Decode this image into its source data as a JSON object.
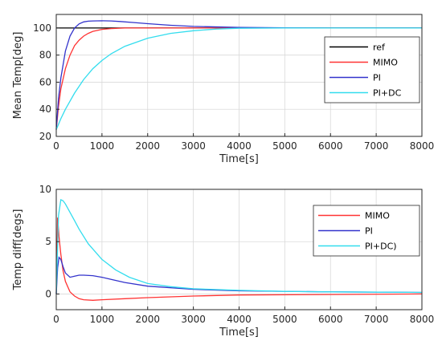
{
  "chart_data": [
    {
      "type": "line",
      "xlabel": "Time[s]",
      "ylabel": "Mean Temp[deg]",
      "xlim": [
        0,
        8000
      ],
      "ylim": [
        20,
        110
      ],
      "xticks": [
        0,
        1000,
        2000,
        3000,
        4000,
        5000,
        6000,
        7000,
        8000
      ],
      "yticks": [
        20,
        40,
        60,
        80,
        100
      ],
      "grid": true,
      "legend": "right-center",
      "series": [
        {
          "name": "ref",
          "color": "#000000",
          "x": [
            0,
            8000
          ],
          "y": [
            100,
            100
          ]
        },
        {
          "name": "MIMO",
          "color": "#ff3333",
          "x": [
            0,
            50,
            100,
            200,
            300,
            400,
            500,
            600,
            700,
            800,
            1000,
            1200,
            1500,
            2000,
            3000,
            8000
          ],
          "y": [
            25,
            42,
            55,
            70,
            80,
            87,
            91,
            94,
            96,
            97.5,
            99,
            99.6,
            100,
            100,
            100,
            100
          ]
        },
        {
          "name": "PI",
          "color": "#3333cc",
          "x": [
            0,
            50,
            100,
            200,
            300,
            400,
            500,
            600,
            700,
            800,
            1000,
            1200,
            1400,
            1700,
            2000,
            2500,
            3000,
            4000,
            5000,
            6000,
            8000
          ],
          "y": [
            25,
            48,
            63,
            83,
            94,
            100,
            103,
            104.5,
            105,
            105.2,
            105.3,
            105.2,
            104.8,
            104,
            103.2,
            102,
            101.2,
            100.4,
            100.1,
            100,
            100
          ]
        },
        {
          "name": "PI+DC",
          "color": "#33ddee",
          "x": [
            0,
            100,
            200,
            400,
            600,
            800,
            1000,
            1200,
            1500,
            2000,
            2500,
            3000,
            3500,
            4000,
            5000,
            6000,
            8000
          ],
          "y": [
            25,
            33,
            40,
            52,
            62,
            70,
            76,
            81,
            86.5,
            92.5,
            96,
            98,
            99.2,
            99.8,
            100,
            100,
            100
          ]
        }
      ]
    },
    {
      "type": "line",
      "xlabel": "Time[s]",
      "ylabel": "Temp diff[degs]",
      "xlim": [
        0,
        8000
      ],
      "ylim": [
        -1.5,
        10
      ],
      "xticks": [
        0,
        1000,
        2000,
        3000,
        4000,
        5000,
        6000,
        7000,
        8000
      ],
      "yticks": [
        0,
        5,
        10
      ],
      "grid": true,
      "legend": "top-right",
      "series": [
        {
          "name": "MIMO",
          "color": "#ff3333",
          "x": [
            0,
            30,
            60,
            100,
            150,
            200,
            300,
            400,
            500,
            600,
            800,
            1000,
            1500,
            2000,
            3000,
            4000,
            8000
          ],
          "y": [
            0,
            7.3,
            5.5,
            3.8,
            2.2,
            1.2,
            0.2,
            -0.2,
            -0.45,
            -0.55,
            -0.6,
            -0.55,
            -0.45,
            -0.35,
            -0.2,
            -0.1,
            0
          ]
        },
        {
          "name": "PI",
          "color": "#3333cc",
          "x": [
            0,
            30,
            60,
            100,
            150,
            200,
            300,
            400,
            500,
            600,
            800,
            1000,
            1200,
            1500,
            2000,
            3000,
            4000,
            6000,
            8000
          ],
          "y": [
            0,
            2.5,
            3.5,
            3.3,
            2.6,
            2.0,
            1.6,
            1.7,
            1.8,
            1.8,
            1.75,
            1.6,
            1.4,
            1.1,
            0.75,
            0.45,
            0.3,
            0.2,
            0.15
          ]
        },
        {
          "name": "PI+DC)",
          "color": "#33ddee",
          "x": [
            0,
            50,
            100,
            150,
            200,
            300,
            400,
            500,
            700,
            1000,
            1300,
            1600,
            2000,
            2500,
            3000,
            4000,
            5000,
            6000,
            8000
          ],
          "y": [
            0,
            7.5,
            9.0,
            8.9,
            8.6,
            7.8,
            7.0,
            6.2,
            4.8,
            3.3,
            2.3,
            1.6,
            1.0,
            0.7,
            0.5,
            0.35,
            0.25,
            0.2,
            0.15
          ]
        }
      ]
    }
  ]
}
